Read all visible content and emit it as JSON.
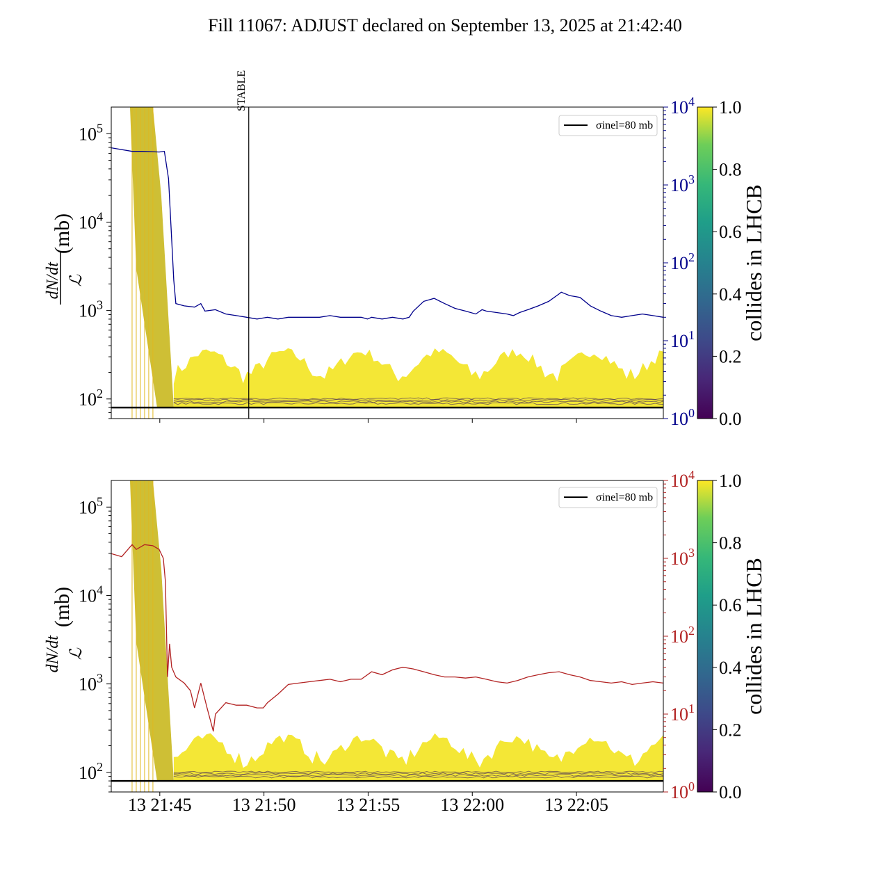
{
  "chart_data": {
    "title": "Fill 11067: ADJUST declared on September 13, 2025 at 21:42:40",
    "type": "line",
    "x_ticks": [
      "13 21:45",
      "13 21:50",
      "13 21:55",
      "13 22:00",
      "13 22:05"
    ],
    "x_tick_minutes": [
      2.33,
      7.33,
      12.33,
      17.33,
      22.33
    ],
    "x_range_minutes": [
      0,
      26.5
    ],
    "stable_marker": {
      "label": "STABLE",
      "minute": 6.6
    },
    "colorbar": {
      "label": "collides in LHCB",
      "ticks": [
        "0.0",
        "0.2",
        "0.4",
        "0.6",
        "0.8",
        "1.0"
      ],
      "colormap": "viridis"
    },
    "panels": [
      {
        "ylabel": "dN/dt / L (mb)",
        "ylabel_num": "dN/dt",
        "ylabel_den": "ℒ",
        "ylabel_unit": "(mb)",
        "y_scale": "log",
        "ylim": [
          60,
          200000
        ],
        "y_ticks": [
          "10^2",
          "10^3",
          "10^4",
          "10^5"
        ],
        "right_axis": {
          "scale": "log",
          "ylim": [
            1,
            10000
          ],
          "ticks": [
            "10^0",
            "10^1",
            "10^2",
            "10^3",
            "10^4"
          ],
          "color": "#00008b"
        },
        "legend": {
          "label": "σinel=80 mb",
          "placement": "upper right"
        },
        "hline_mb": 80,
        "right_series": {
          "color": "#00008b",
          "points": [
            [
              0,
              3000
            ],
            [
              1.0,
              2700
            ],
            [
              1.5,
              2700
            ],
            [
              2.3,
              2650
            ],
            [
              2.55,
              2700
            ],
            [
              2.75,
              1200
            ],
            [
              2.9,
              200
            ],
            [
              3.0,
              60
            ],
            [
              3.1,
              30
            ],
            [
              3.5,
              28
            ],
            [
              4.0,
              27
            ],
            [
              4.3,
              30
            ],
            [
              4.5,
              24
            ],
            [
              5.0,
              25
            ],
            [
              5.5,
              22
            ],
            [
              6.0,
              21
            ],
            [
              6.5,
              20
            ],
            [
              7.0,
              19
            ],
            [
              7.5,
              20
            ],
            [
              8.0,
              19
            ],
            [
              8.5,
              20
            ],
            [
              9.0,
              20
            ],
            [
              9.5,
              20
            ],
            [
              10.0,
              20
            ],
            [
              10.5,
              21
            ],
            [
              11.0,
              20
            ],
            [
              11.5,
              20
            ],
            [
              12.0,
              20
            ],
            [
              12.3,
              19
            ],
            [
              12.5,
              20
            ],
            [
              13.0,
              19
            ],
            [
              13.5,
              20
            ],
            [
              14.0,
              19
            ],
            [
              14.3,
              20
            ],
            [
              14.5,
              24
            ],
            [
              15.0,
              32
            ],
            [
              15.5,
              35
            ],
            [
              16.0,
              30
            ],
            [
              16.5,
              26
            ],
            [
              17.0,
              24
            ],
            [
              17.5,
              22
            ],
            [
              17.8,
              25
            ],
            [
              18.0,
              24
            ],
            [
              18.5,
              23
            ],
            [
              19.0,
              22
            ],
            [
              19.3,
              21
            ],
            [
              19.6,
              23
            ],
            [
              20.0,
              25
            ],
            [
              20.5,
              28
            ],
            [
              21.0,
              32
            ],
            [
              21.5,
              40
            ],
            [
              21.6,
              42
            ],
            [
              22.0,
              38
            ],
            [
              22.5,
              36
            ],
            [
              23.0,
              28
            ],
            [
              23.5,
              24
            ],
            [
              24.0,
              21
            ],
            [
              24.5,
              20
            ],
            [
              25.0,
              21
            ],
            [
              25.5,
              22
            ],
            [
              26.0,
              21
            ],
            [
              26.5,
              20
            ]
          ]
        }
      },
      {
        "ylabel": "dN/dt / L (mb)",
        "ylabel_num": "dN/dt",
        "ylabel_den": "ℒ",
        "ylabel_unit": "(mb)",
        "y_scale": "log",
        "ylim": [
          60,
          200000
        ],
        "y_ticks": [
          "10^2",
          "10^3",
          "10^4",
          "10^5"
        ],
        "right_axis": {
          "scale": "log",
          "ylim": [
            1,
            10000
          ],
          "ticks": [
            "10^0",
            "10^1",
            "10^2",
            "10^3",
            "10^4"
          ],
          "color": "#b22222"
        },
        "legend": {
          "label": "σinel=80 mb",
          "placement": "upper right"
        },
        "hline_mb": 80,
        "right_series": {
          "color": "#b22222",
          "points": [
            [
              0,
              1150
            ],
            [
              0.5,
              1050
            ],
            [
              0.8,
              1300
            ],
            [
              1.0,
              1500
            ],
            [
              1.2,
              1300
            ],
            [
              1.6,
              1500
            ],
            [
              2.0,
              1450
            ],
            [
              2.3,
              1300
            ],
            [
              2.5,
              1000
            ],
            [
              2.6,
              500
            ],
            [
              2.7,
              30
            ],
            [
              2.8,
              80
            ],
            [
              2.9,
              40
            ],
            [
              3.1,
              30
            ],
            [
              3.5,
              25
            ],
            [
              3.8,
              20
            ],
            [
              4.0,
              12
            ],
            [
              4.3,
              25
            ],
            [
              4.6,
              12
            ],
            [
              4.9,
              6
            ],
            [
              5.0,
              10
            ],
            [
              5.5,
              14
            ],
            [
              6.0,
              13
            ],
            [
              6.5,
              13
            ],
            [
              7.0,
              12
            ],
            [
              7.3,
              12
            ],
            [
              7.5,
              14
            ],
            [
              8.0,
              18
            ],
            [
              8.5,
              24
            ],
            [
              9.0,
              25
            ],
            [
              9.5,
              26
            ],
            [
              10.0,
              27
            ],
            [
              10.5,
              28
            ],
            [
              11.0,
              26
            ],
            [
              11.5,
              28
            ],
            [
              12.0,
              28
            ],
            [
              12.5,
              35
            ],
            [
              13.0,
              32
            ],
            [
              13.5,
              37
            ],
            [
              14.0,
              40
            ],
            [
              14.5,
              38
            ],
            [
              15.0,
              35
            ],
            [
              15.5,
              32
            ],
            [
              16.0,
              30
            ],
            [
              16.5,
              30
            ],
            [
              17.0,
              29
            ],
            [
              17.5,
              30
            ],
            [
              18.0,
              28
            ],
            [
              18.5,
              26
            ],
            [
              19.0,
              25
            ],
            [
              19.5,
              27
            ],
            [
              20.0,
              30
            ],
            [
              20.5,
              32
            ],
            [
              21.0,
              34
            ],
            [
              21.5,
              35
            ],
            [
              22.0,
              32
            ],
            [
              22.5,
              30
            ],
            [
              23.0,
              27
            ],
            [
              23.5,
              26
            ],
            [
              24.0,
              25
            ],
            [
              24.5,
              26
            ],
            [
              25.0,
              24
            ],
            [
              25.5,
              25
            ],
            [
              26.0,
              26
            ],
            [
              26.5,
              25
            ]
          ]
        }
      }
    ]
  }
}
